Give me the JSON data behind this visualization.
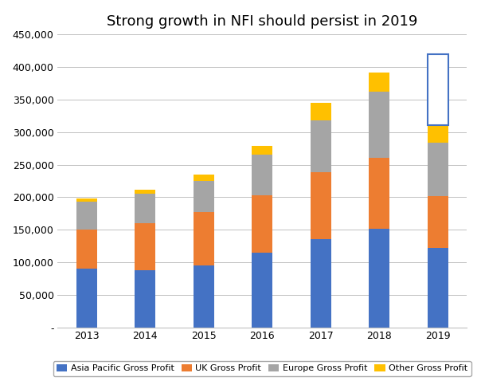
{
  "title": "Strong growth in NFI should persist in 2019",
  "years": [
    2013,
    2014,
    2015,
    2016,
    2017,
    2018,
    2019
  ],
  "asia_pacific": [
    90000,
    88000,
    95000,
    115000,
    135000,
    152000,
    122000
  ],
  "uk": [
    60000,
    72000,
    82000,
    88000,
    103000,
    108000,
    80000
  ],
  "europe": [
    43000,
    45000,
    48000,
    63000,
    80000,
    102000,
    82000
  ],
  "other": [
    5000,
    7000,
    10000,
    13000,
    27000,
    30000,
    27000
  ],
  "forecast_2019_total": 420000,
  "colors": {
    "asia_pacific": "#4472C4",
    "uk": "#ED7D31",
    "europe": "#A5A5A5",
    "other": "#FFC000"
  },
  "ylim": [
    0,
    450000
  ],
  "yticks": [
    0,
    50000,
    100000,
    150000,
    200000,
    250000,
    300000,
    350000,
    400000,
    450000
  ],
  "legend_labels": [
    "Asia Pacific Gross Profit",
    "UK Gross Profit",
    "Europe Gross Profit",
    "Other Gross Profit"
  ],
  "background_color": "#FFFFFF",
  "bar_width": 0.35,
  "title_fontsize": 13,
  "tick_fontsize": 9,
  "legend_fontsize": 8
}
